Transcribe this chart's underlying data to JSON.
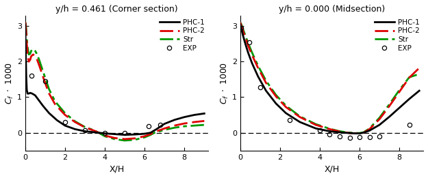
{
  "title_left": "y/h = 0.461 (Corner section)",
  "title_right": "y/h = 0.000 (Midsection)",
  "xlabel": "X/H",
  "xlim": [
    0,
    9.2
  ],
  "ylim": [
    -0.5,
    3.3
  ],
  "yticks": [
    0,
    1,
    2,
    3
  ],
  "xticks": [
    0,
    2,
    4,
    6,
    8
  ],
  "left_PHC1_x": [
    0.0,
    0.02,
    0.05,
    0.08,
    0.12,
    0.18,
    0.25,
    0.35,
    0.5,
    0.7,
    0.9,
    1.2,
    1.6,
    2.0,
    2.5,
    3.0,
    3.5,
    4.0,
    4.5,
    5.0,
    5.5,
    6.0,
    6.3,
    6.6,
    7.0,
    7.5,
    8.0,
    8.5,
    9.0
  ],
  "left_PHC1_y": [
    3.05,
    2.5,
    1.6,
    1.2,
    1.1,
    1.1,
    1.12,
    1.1,
    1.05,
    0.9,
    0.75,
    0.55,
    0.35,
    0.2,
    0.1,
    0.04,
    0.01,
    -0.02,
    -0.04,
    -0.06,
    -0.05,
    -0.03,
    0.0,
    0.1,
    0.25,
    0.36,
    0.44,
    0.5,
    0.54
  ],
  "left_PHC2_x": [
    0.0,
    0.02,
    0.05,
    0.08,
    0.12,
    0.18,
    0.25,
    0.3,
    0.4,
    0.5,
    0.6,
    0.7,
    0.85,
    1.0,
    1.2,
    1.5,
    2.0,
    2.5,
    3.0,
    3.5,
    4.0,
    4.5,
    5.0,
    5.5,
    6.0,
    6.3,
    6.5,
    7.0,
    7.5,
    8.0,
    8.5,
    9.0
  ],
  "left_PHC2_y": [
    3.1,
    3.05,
    2.8,
    2.5,
    2.2,
    2.0,
    2.05,
    2.15,
    2.2,
    2.15,
    2.05,
    1.9,
    1.65,
    1.4,
    1.1,
    0.8,
    0.5,
    0.3,
    0.15,
    0.05,
    -0.08,
    -0.15,
    -0.18,
    -0.16,
    -0.1,
    -0.04,
    0.02,
    0.12,
    0.2,
    0.26,
    0.3,
    0.33
  ],
  "left_Str_x": [
    0.0,
    0.02,
    0.05,
    0.08,
    0.12,
    0.18,
    0.25,
    0.3,
    0.4,
    0.5,
    0.6,
    0.7,
    0.85,
    1.0,
    1.2,
    1.5,
    2.0,
    2.5,
    3.0,
    3.5,
    4.0,
    4.5,
    5.0,
    5.5,
    6.0,
    6.3,
    6.5,
    7.0,
    7.5,
    8.0,
    8.5,
    9.0
  ],
  "left_Str_y": [
    3.1,
    3.08,
    2.9,
    2.65,
    2.4,
    2.2,
    2.22,
    2.3,
    2.35,
    2.3,
    2.2,
    2.05,
    1.8,
    1.55,
    1.22,
    0.88,
    0.55,
    0.32,
    0.16,
    0.06,
    -0.1,
    -0.18,
    -0.22,
    -0.2,
    -0.13,
    -0.06,
    0.0,
    0.08,
    0.14,
    0.18,
    0.2,
    0.22
  ],
  "left_EXP_x": [
    0.3,
    1.0,
    2.0,
    3.0,
    4.0,
    5.0,
    6.2,
    6.8
  ],
  "left_EXP_y": [
    1.6,
    1.45,
    0.3,
    0.06,
    0.0,
    0.0,
    0.18,
    0.22
  ],
  "right_PHC1_x": [
    0.0,
    0.03,
    0.08,
    0.15,
    0.25,
    0.4,
    0.6,
    0.9,
    1.3,
    1.8,
    2.3,
    3.0,
    3.8,
    4.5,
    5.0,
    5.5,
    5.8,
    6.0,
    6.2,
    6.5,
    7.0,
    7.5,
    8.0,
    8.5,
    9.0
  ],
  "right_PHC1_y": [
    3.05,
    2.98,
    2.88,
    2.72,
    2.52,
    2.25,
    1.95,
    1.58,
    1.18,
    0.82,
    0.55,
    0.3,
    0.12,
    0.04,
    0.01,
    -0.01,
    -0.02,
    -0.02,
    0.0,
    0.06,
    0.22,
    0.45,
    0.7,
    0.95,
    1.18
  ],
  "right_PHC2_x": [
    0.0,
    0.03,
    0.08,
    0.15,
    0.25,
    0.4,
    0.6,
    0.9,
    1.3,
    1.8,
    2.3,
    3.0,
    3.8,
    4.5,
    5.0,
    5.5,
    5.8,
    6.0,
    6.2,
    6.5,
    7.0,
    7.5,
    8.0,
    8.5,
    9.0
  ],
  "right_PHC2_y": [
    3.1,
    3.06,
    2.98,
    2.85,
    2.7,
    2.45,
    2.18,
    1.82,
    1.4,
    1.02,
    0.72,
    0.44,
    0.22,
    0.1,
    0.03,
    -0.01,
    -0.02,
    -0.02,
    0.0,
    0.1,
    0.38,
    0.75,
    1.15,
    1.55,
    1.82
  ],
  "right_Str_x": [
    0.0,
    0.03,
    0.08,
    0.15,
    0.25,
    0.4,
    0.6,
    0.9,
    1.3,
    1.8,
    2.3,
    3.0,
    3.8,
    4.5,
    5.0,
    5.5,
    5.8,
    6.0,
    6.2,
    6.5,
    7.0,
    7.5,
    8.0,
    8.5,
    9.0
  ],
  "right_Str_y": [
    3.1,
    3.08,
    3.02,
    2.9,
    2.75,
    2.52,
    2.25,
    1.88,
    1.46,
    1.06,
    0.76,
    0.46,
    0.24,
    0.11,
    0.04,
    0.0,
    -0.01,
    -0.01,
    0.01,
    0.12,
    0.42,
    0.8,
    1.2,
    1.56,
    1.65
  ],
  "right_EXP_x": [
    0.05,
    0.45,
    1.0,
    2.5,
    4.0,
    4.5,
    5.0,
    5.5,
    6.0,
    6.5,
    7.0,
    8.5
  ],
  "right_EXP_y": [
    2.95,
    2.55,
    1.28,
    0.35,
    0.06,
    -0.05,
    -0.1,
    -0.14,
    -0.13,
    -0.12,
    -0.1,
    0.22
  ],
  "color_PHC1": "#000000",
  "color_PHC2": "#dd0000",
  "color_Str": "#009900",
  "color_EXP": "#000000",
  "bg_color": "#ffffff"
}
